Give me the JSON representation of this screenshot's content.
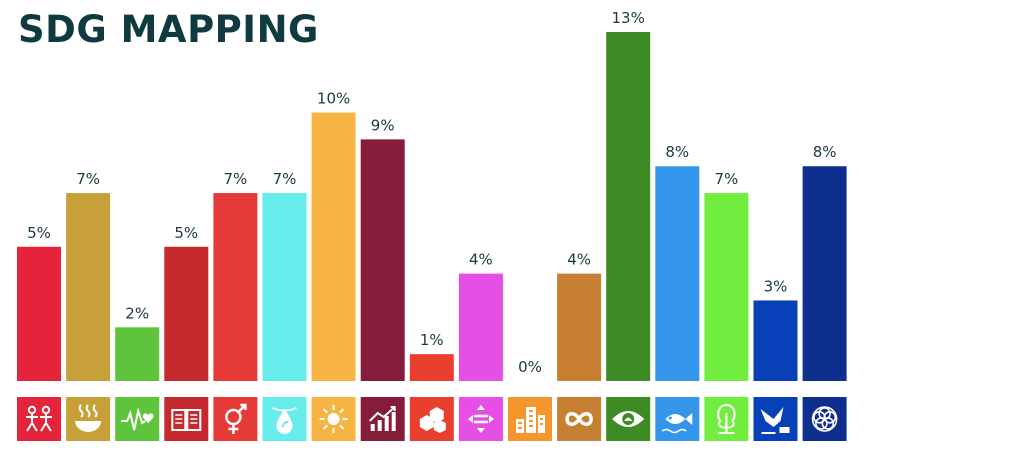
{
  "title": "SDG MAPPING",
  "chart_data": {
    "type": "bar",
    "title": "SDG MAPPING",
    "categories": [
      "SDG 1",
      "SDG 2",
      "SDG 3",
      "SDG 4",
      "SDG 5",
      "SDG 6",
      "SDG 7",
      "SDG 8",
      "SDG 9",
      "SDG 10",
      "SDG 11",
      "SDG 12",
      "SDG 13",
      "SDG 14",
      "SDG 15",
      "SDG 16",
      "SDG 17"
    ],
    "values": [
      5,
      7,
      2,
      5,
      7,
      7,
      10,
      9,
      1,
      4,
      0,
      4,
      13,
      8,
      7,
      3,
      8
    ],
    "value_labels": [
      "5%",
      "7%",
      "2%",
      "5%",
      "7%",
      "7%",
      "10%",
      "9%",
      "1%",
      "4%",
      "0%",
      "4%",
      "13%",
      "8%",
      "7%",
      "3%",
      "8%"
    ],
    "colors": [
      "#e5243b",
      "#c8a03a",
      "#5ec43c",
      "#c5292e",
      "#e63a39",
      "#66ecea",
      "#f6b443",
      "#841c3a",
      "#e83f2f",
      "#e64fe4",
      "#f5962c",
      "#c77f32",
      "#3e8a25",
      "#3396ea",
      "#71ed3f",
      "#0841b7",
      "#0e2f8d"
    ],
    "icons": [
      "people-icon",
      "bowl-icon",
      "heartbeat-icon",
      "book-icon",
      "gender-icon",
      "water-drop-icon",
      "sun-icon",
      "growth-chart-icon",
      "cubes-icon",
      "equality-arrows-icon",
      "city-icon",
      "infinity-icon",
      "eye-icon",
      "fish-icon",
      "tree-icon",
      "dove-gavel-icon",
      "rings-icon"
    ],
    "xlabel": "",
    "ylabel": "",
    "ylim": [
      0,
      13
    ],
    "grid": false,
    "legend": "none"
  }
}
